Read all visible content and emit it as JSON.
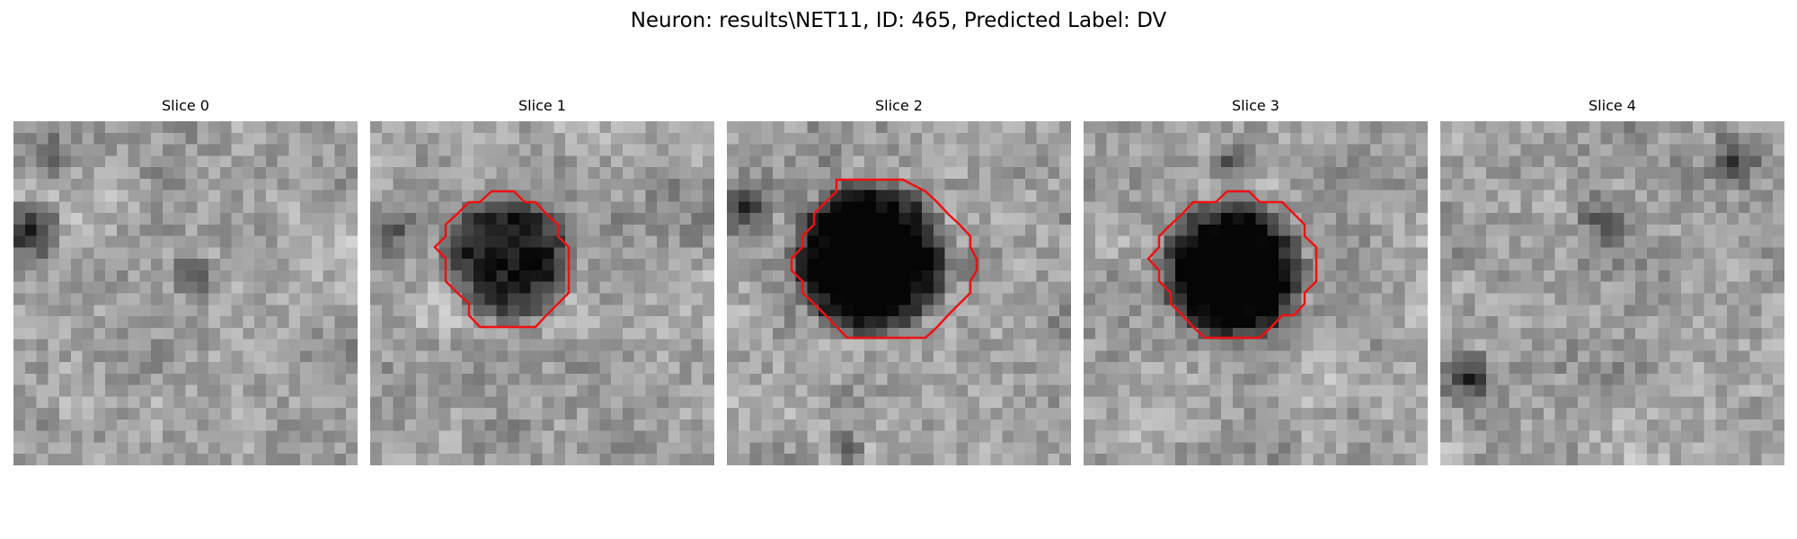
{
  "figure": {
    "title": "Neuron: results\\NET11, ID: 465, Predicted Label: DV"
  },
  "slices": [
    {
      "label": "Slice 0",
      "has_contour": false
    },
    {
      "label": "Slice 1",
      "has_contour": true
    },
    {
      "label": "Slice 2",
      "has_contour": true
    },
    {
      "label": "Slice 3",
      "has_contour": true
    },
    {
      "label": "Slice 4",
      "has_contour": false
    }
  ],
  "colors": {
    "contour": "#ee1111",
    "background": "#ffffff",
    "image_colormap": "grayscale"
  }
}
